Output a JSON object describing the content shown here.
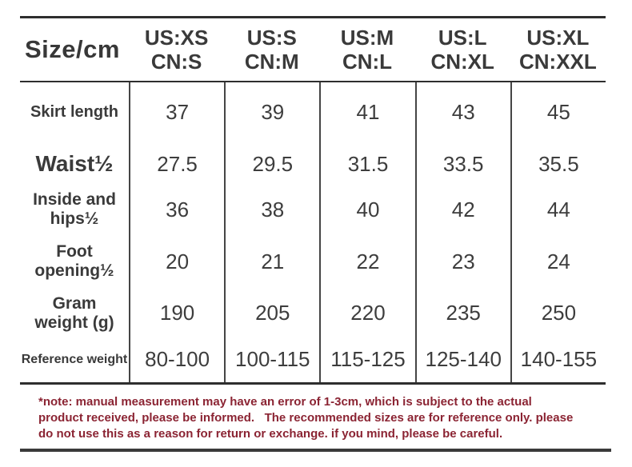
{
  "table": {
    "corner_label": "Size/cm",
    "columns": [
      {
        "us": "US:XS",
        "cn": "CN:S"
      },
      {
        "us": "US:S",
        "cn": "CN:M"
      },
      {
        "us": "US:M",
        "cn": "CN:L"
      },
      {
        "us": "US:L",
        "cn": "CN:XL"
      },
      {
        "us": "US:XL",
        "cn": "CN:XXL"
      }
    ],
    "rows": [
      {
        "label": "Skirt length",
        "values": [
          "37",
          "39",
          "41",
          "43",
          "45"
        ]
      },
      {
        "label": "Waist½",
        "values": [
          "27.5",
          "29.5",
          "31.5",
          "33.5",
          "35.5"
        ]
      },
      {
        "label": "Inside and\nhips½",
        "values": [
          "36",
          "38",
          "40",
          "42",
          "44"
        ]
      },
      {
        "label": "Foot\nopening½",
        "values": [
          "20",
          "21",
          "22",
          "23",
          "24"
        ]
      },
      {
        "label": "Gram\nweight (g)",
        "values": [
          "190",
          "205",
          "220",
          "235",
          "250"
        ]
      },
      {
        "label": "Reference weight",
        "values": [
          "80-100",
          "100-115",
          "115-125",
          "125-140",
          "140-155"
        ]
      }
    ]
  },
  "note": {
    "lines": [
      "*note: manual measurement may have an error of 1-3cm, which is subject to the actual",
      "product received, please be informed.   The recommended sizes are for reference only. please",
      "do not use this as a reason for return or exchange. if you mind, please be careful."
    ],
    "color": "#8b2433"
  },
  "colors": {
    "heading_text": "#3a3a3a",
    "value_text": "#3d3d3d",
    "rule": "#2e2e2e",
    "separator": "#454545",
    "note_text": "#8b2433",
    "background": "#ffffff"
  }
}
